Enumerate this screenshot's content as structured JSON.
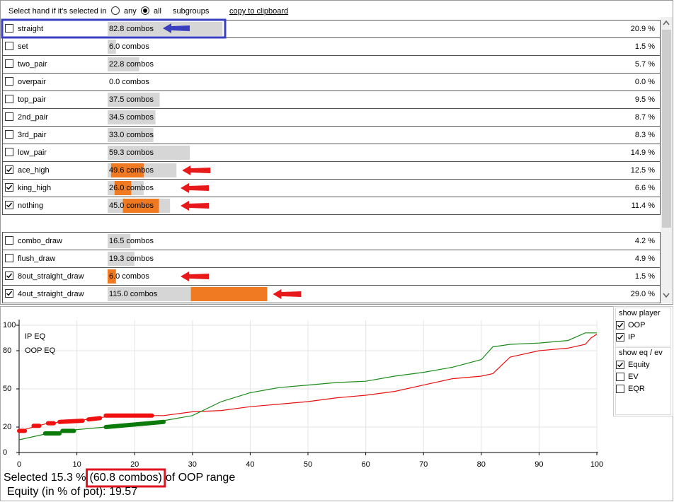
{
  "filter": {
    "label": "Select hand if it's selected in",
    "options": [
      {
        "label": "any",
        "selected": false
      },
      {
        "label": "all",
        "selected": true
      }
    ],
    "subgroups": "subgroups",
    "link": "copy to clipboard"
  },
  "hand_list": [
    [
      {
        "name": "straight",
        "checked": false,
        "combos": 82.8,
        "unit": "combos",
        "percent": "20.9 %"
      },
      {
        "name": "set",
        "checked": false,
        "combos": 6.0,
        "combos_label": "6.0",
        "unit": "combos",
        "percent": "1.5 %"
      },
      {
        "name": "two_pair",
        "checked": false,
        "combos": 22.8,
        "unit": "combos",
        "percent": "5.7 %"
      },
      {
        "name": "overpair",
        "checked": false,
        "combos": 0.0,
        "combos_label": "0.0",
        "unit": "combos",
        "percent": "0.0 %"
      },
      {
        "name": "top_pair",
        "checked": false,
        "combos": 37.5,
        "unit": "combos",
        "percent": "9.5 %"
      },
      {
        "name": "2nd_pair",
        "checked": false,
        "combos": 34.5,
        "unit": "combos",
        "percent": "8.7 %"
      },
      {
        "name": "3rd_pair",
        "checked": false,
        "combos": 33.0,
        "combos_label": "33.0",
        "unit": "combos",
        "percent": "8.3 %"
      },
      {
        "name": "low_pair",
        "checked": false,
        "combos": 59.3,
        "unit": "combos",
        "percent": "14.9 %"
      },
      {
        "name": "ace_high",
        "checked": true,
        "combos": 49.6,
        "unit": "combos",
        "percent": "12.5 %",
        "highlight": [
          2.5,
          26
        ]
      },
      {
        "name": "king_high",
        "checked": true,
        "combos": 26.0,
        "combos_label": "26.0",
        "unit": "combos",
        "percent": "6.6 %",
        "highlight": [
          5,
          17
        ]
      },
      {
        "name": "nothing",
        "checked": true,
        "combos": 45.0,
        "combos_label": "45.0",
        "unit": "combos",
        "percent": "11.4 %",
        "highlight": [
          11,
          37
        ]
      }
    ],
    [
      {
        "name": "combo_draw",
        "checked": false,
        "combos": 16.5,
        "unit": "combos",
        "percent": "4.2 %"
      },
      {
        "name": "flush_draw",
        "checked": false,
        "combos": 19.3,
        "unit": "combos",
        "percent": "4.9 %"
      },
      {
        "name": "8out_straight_draw",
        "checked": true,
        "combos": 6.0,
        "combos_label": "6.0",
        "unit": "combos",
        "percent": "1.5 %",
        "highlight": [
          0,
          6
        ]
      },
      {
        "name": "4out_straight_draw",
        "checked": true,
        "combos": 115.0,
        "combos_label": "115.0",
        "unit": "combos",
        "percent": "29.0 %",
        "highlight": [
          60,
          115
        ]
      }
    ]
  ],
  "chart_data": {
    "type": "line",
    "series": [
      {
        "name": "IP EQ",
        "color": "#e81010",
        "x": [
          0,
          5,
          10,
          15,
          20,
          25,
          30,
          35,
          40,
          45,
          50,
          55,
          60,
          65,
          70,
          75,
          80,
          82,
          85,
          90,
          95,
          98,
          99,
          100
        ],
        "values": [
          17,
          23,
          25,
          28,
          29,
          29,
          32,
          33,
          36,
          38,
          40,
          43,
          45,
          48,
          53,
          58,
          60,
          62,
          75,
          80,
          82,
          85,
          90,
          93
        ]
      },
      {
        "name": "OOP EQ",
        "color": "#1a8a1a",
        "x": [
          0,
          5,
          10,
          15,
          20,
          25,
          30,
          35,
          40,
          45,
          50,
          55,
          60,
          65,
          70,
          75,
          80,
          82,
          85,
          90,
          95,
          98,
          99,
          100
        ],
        "values": [
          10,
          15,
          18,
          20,
          23,
          25,
          29,
          40,
          47,
          51,
          53,
          55,
          56,
          60,
          63,
          67,
          73,
          83,
          85,
          86,
          88,
          94,
          94,
          94
        ]
      }
    ],
    "highlights": [
      {
        "color": "#f01010",
        "x": [
          0,
          1,
          1.5,
          2.5,
          3.5,
          4,
          5,
          6,
          6.5,
          7,
          11,
          11.5,
          12,
          14,
          14.5,
          15,
          23
        ],
        "values": [
          17,
          17,
          null,
          21,
          21,
          null,
          23,
          23,
          null,
          24,
          25,
          null,
          26,
          27,
          null,
          29,
          29
        ]
      },
      {
        "color": "#0a7a0a",
        "x": [
          4.5,
          7,
          7.2,
          7.5,
          9.5,
          12,
          15,
          25
        ],
        "values": [
          15,
          15,
          null,
          17,
          17,
          null,
          20,
          24
        ]
      }
    ],
    "xlim": [
      0,
      100
    ],
    "xticks": [
      0,
      10,
      20,
      30,
      40,
      50,
      60,
      70,
      80,
      90,
      100
    ],
    "ylim": [
      0,
      100
    ],
    "yticks": [
      0,
      20,
      50,
      80,
      100
    ],
    "grid": true
  },
  "options": {
    "player_title": "show player",
    "players": [
      {
        "label": "OOP",
        "checked": true
      },
      {
        "label": "IP",
        "checked": true
      }
    ],
    "metric_title": "show eq / ev",
    "metrics": [
      {
        "label": "Equity",
        "checked": true
      },
      {
        "label": "EV",
        "checked": false
      },
      {
        "label": "EQR",
        "checked": false
      }
    ]
  },
  "summary": {
    "prefix": "Selected 15.3 %",
    "combos": "(60.8 combos)",
    "suffix": "of OOP range",
    "equity": "Equity (in % of pot): 19.57"
  }
}
